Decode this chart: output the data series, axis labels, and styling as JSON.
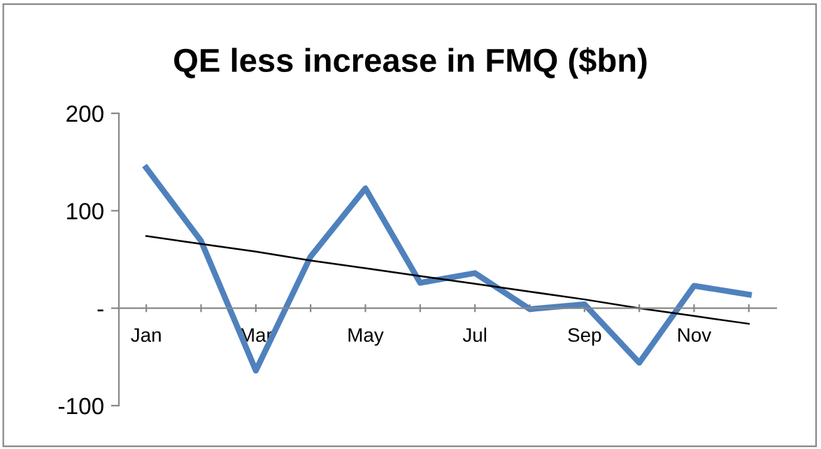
{
  "chart_data": {
    "type": "line",
    "title": "QE less increase in FMQ ($bn)",
    "categories": [
      "Jan",
      null,
      "Mar",
      null,
      "May",
      null,
      "Jul",
      null,
      "Sep",
      null,
      "Nov",
      null
    ],
    "series": [
      {
        "color": "#4f81bd",
        "values": [
          144,
          69,
          -64,
          53,
          123,
          26,
          36,
          -1,
          4,
          -56,
          23,
          14
        ]
      },
      {
        "color": "#000000",
        "values": [
          74,
          66,
          58,
          49,
          41,
          33,
          25,
          17,
          9,
          0,
          -8,
          -16
        ]
      }
    ],
    "ylim": [
      -100,
      200
    ],
    "yticks": [
      {
        "value": -100,
        "label": "-100"
      },
      {
        "value": 0,
        "label": "-"
      },
      100,
      200
    ],
    "grid": false,
    "legend": false,
    "marker": "none",
    "line_style": "solid"
  }
}
